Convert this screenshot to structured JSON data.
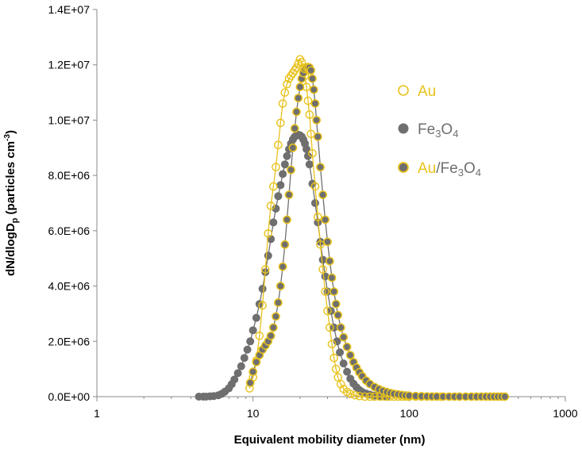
{
  "chart_data": {
    "type": "scatter",
    "title": "",
    "xlabel": "Equivalent mobility diameter (nm)",
    "ylabel": {
      "main": "dN/dlogD",
      "sub": "p",
      "rest": " (particles cm",
      "sup": "-3",
      "close": ")"
    },
    "x_scale": "log",
    "xlim": [
      1,
      1000
    ],
    "ylim": [
      0,
      14000000
    ],
    "x_ticks": [
      {
        "value": 1,
        "label": "1"
      },
      {
        "value": 10,
        "label": "10"
      },
      {
        "value": 100,
        "label": "100"
      },
      {
        "value": 1000,
        "label": "1000"
      }
    ],
    "y_ticks": [
      {
        "value": 0,
        "label": "0.0E+00"
      },
      {
        "value": 2000000,
        "label": "2.0E+06"
      },
      {
        "value": 4000000,
        "label": "4.0E+06"
      },
      {
        "value": 6000000,
        "label": "6.0E+06"
      },
      {
        "value": 8000000,
        "label": "8.0E+06"
      },
      {
        "value": 10000000,
        "label": "1.0E+07"
      },
      {
        "value": 12000000,
        "label": "1.2E+07"
      },
      {
        "value": 14000000,
        "label": "1.4E+07"
      }
    ],
    "grid": false,
    "legend_position": "right",
    "series": [
      {
        "name": "Au",
        "legend": [
          {
            "text": "Au",
            "color": "#e8c21c"
          }
        ],
        "marker": "open-circle",
        "color": "#e8c21c",
        "points": [
          [
            9.5,
            300000
          ],
          [
            10.0,
            700000
          ],
          [
            10.5,
            1300000
          ],
          [
            11.0,
            2200000
          ],
          [
            11.5,
            3300000
          ],
          [
            12.0,
            4600000
          ],
          [
            12.5,
            5900000
          ],
          [
            13.0,
            6900000
          ],
          [
            13.5,
            7600000
          ],
          [
            14.0,
            8300000
          ],
          [
            14.5,
            9100000
          ],
          [
            15.0,
            9900000
          ],
          [
            15.5,
            10600000
          ],
          [
            16.0,
            11000000
          ],
          [
            16.5,
            11300000
          ],
          [
            17.0,
            11500000
          ],
          [
            17.5,
            11600000
          ],
          [
            18.0,
            11700000
          ],
          [
            18.5,
            11800000
          ],
          [
            19.0,
            11900000
          ],
          [
            19.5,
            12050000
          ],
          [
            20.0,
            12200000
          ],
          [
            20.5,
            12100000
          ],
          [
            21.0,
            11900000
          ],
          [
            21.5,
            11600000
          ],
          [
            22.0,
            11200000
          ],
          [
            22.5,
            10700000
          ],
          [
            23.0,
            10200000
          ],
          [
            23.5,
            9500000
          ],
          [
            24.0,
            8800000
          ],
          [
            25.0,
            7600000
          ],
          [
            26.0,
            6500000
          ],
          [
            27.0,
            5500000
          ],
          [
            28.0,
            4600000
          ],
          [
            29.0,
            3800000
          ],
          [
            30.0,
            3100000
          ],
          [
            31.0,
            2500000
          ],
          [
            32.0,
            1900000
          ],
          [
            33.0,
            1400000
          ],
          [
            34.0,
            1000000
          ],
          [
            35.0,
            700000
          ],
          [
            36.5,
            450000
          ],
          [
            38.0,
            280000
          ],
          [
            40.0,
            170000
          ],
          [
            42.0,
            100000
          ],
          [
            45.0,
            50000
          ],
          [
            48.0,
            20000
          ],
          [
            52.0,
            0
          ],
          [
            56.0,
            0
          ],
          [
            60.0,
            0
          ],
          [
            65.0,
            0
          ],
          [
            70.0,
            0
          ],
          [
            75.0,
            0
          ],
          [
            80.0,
            0
          ],
          [
            85.0,
            0
          ],
          [
            90.0,
            0
          ],
          [
            95.0,
            0
          ],
          [
            100.0,
            0
          ],
          [
            110.0,
            0
          ],
          [
            120.0,
            0
          ],
          [
            130.0,
            0
          ],
          [
            140.0,
            0
          ],
          [
            150.0,
            0
          ],
          [
            160.0,
            0
          ]
        ]
      },
      {
        "name": "Fe3O4",
        "legend": [
          {
            "text": "Fe",
            "color": "#6f6f6f"
          },
          {
            "text": "3",
            "color": "#6f6f6f",
            "sub": true
          },
          {
            "text": "O",
            "color": "#6f6f6f"
          },
          {
            "text": "4",
            "color": "#6f6f6f",
            "sub": true
          }
        ],
        "marker": "filled-circle",
        "color": "#6f6f6f",
        "points": [
          [
            4.5,
            0
          ],
          [
            4.8,
            0
          ],
          [
            5.0,
            0
          ],
          [
            5.3,
            10000
          ],
          [
            5.6,
            20000
          ],
          [
            6.0,
            50000
          ],
          [
            6.3,
            100000
          ],
          [
            6.6,
            180000
          ],
          [
            7.0,
            300000
          ],
          [
            7.3,
            450000
          ],
          [
            7.6,
            620000
          ],
          [
            8.0,
            850000
          ],
          [
            8.4,
            1100000
          ],
          [
            8.8,
            1400000
          ],
          [
            9.2,
            1700000
          ],
          [
            9.6,
            2000000
          ],
          [
            10.0,
            2400000
          ],
          [
            10.5,
            2850000
          ],
          [
            11.0,
            3350000
          ],
          [
            11.5,
            3900000
          ],
          [
            12.0,
            4500000
          ],
          [
            12.5,
            5100000
          ],
          [
            13.0,
            5700000
          ],
          [
            13.5,
            6300000
          ],
          [
            14.0,
            6800000
          ],
          [
            14.5,
            7250000
          ],
          [
            15.0,
            7650000
          ],
          [
            15.5,
            8050000
          ],
          [
            16.0,
            8400000
          ],
          [
            16.5,
            8700000
          ],
          [
            17.0,
            8950000
          ],
          [
            17.5,
            9150000
          ],
          [
            18.0,
            9300000
          ],
          [
            18.5,
            9400000
          ],
          [
            19.0,
            9450000
          ],
          [
            19.5,
            9470000
          ],
          [
            20.0,
            9450000
          ],
          [
            20.5,
            9400000
          ],
          [
            21.0,
            9300000
          ],
          [
            21.5,
            9150000
          ],
          [
            22.0,
            8950000
          ],
          [
            22.5,
            8700000
          ],
          [
            23.0,
            8400000
          ],
          [
            24.0,
            7700000
          ],
          [
            25.0,
            7000000
          ],
          [
            26.0,
            6300000
          ],
          [
            27.0,
            5600000
          ],
          [
            28.0,
            4950000
          ],
          [
            29.0,
            4350000
          ],
          [
            30.0,
            3800000
          ],
          [
            31.5,
            3100000
          ],
          [
            33.0,
            2500000
          ],
          [
            34.5,
            2000000
          ],
          [
            36.0,
            1600000
          ],
          [
            38.0,
            1200000
          ],
          [
            40.0,
            900000
          ],
          [
            42.0,
            650000
          ],
          [
            44.0,
            470000
          ],
          [
            46.0,
            340000
          ],
          [
            48.0,
            240000
          ],
          [
            50.0,
            170000
          ],
          [
            53.0,
            110000
          ],
          [
            56.0,
            70000
          ],
          [
            60.0,
            40000
          ],
          [
            64.0,
            20000
          ],
          [
            68.0,
            10000
          ],
          [
            72.0,
            0
          ]
        ]
      },
      {
        "name": "Au/Fe3O4",
        "legend": [
          {
            "text": "Au",
            "color": "#e8c21c"
          },
          {
            "text": "/Fe",
            "color": "#6f6f6f"
          },
          {
            "text": "3",
            "color": "#6f6f6f",
            "sub": true
          },
          {
            "text": "O",
            "color": "#6f6f6f"
          },
          {
            "text": "4",
            "color": "#6f6f6f",
            "sub": true
          }
        ],
        "marker": "filled-circle-gold-edge",
        "color": "#6f6f6f",
        "edge_color": "#e8c21c",
        "points": [
          [
            9.6,
            500000
          ],
          [
            10.0,
            900000
          ],
          [
            10.5,
            1250000
          ],
          [
            11.0,
            1500000
          ],
          [
            11.5,
            1700000
          ],
          [
            12.0,
            1850000
          ],
          [
            12.5,
            2000000
          ],
          [
            13.0,
            2200000
          ],
          [
            13.5,
            2500000
          ],
          [
            14.0,
            2900000
          ],
          [
            14.5,
            3400000
          ],
          [
            15.0,
            4000000
          ],
          [
            15.5,
            4700000
          ],
          [
            16.0,
            5500000
          ],
          [
            16.5,
            6400000
          ],
          [
            17.0,
            7300000
          ],
          [
            17.5,
            8200000
          ],
          [
            18.0,
            9000000
          ],
          [
            18.5,
            9700000
          ],
          [
            19.0,
            10300000
          ],
          [
            19.5,
            10800000
          ],
          [
            20.0,
            11200000
          ],
          [
            20.5,
            11500000
          ],
          [
            21.0,
            11700000
          ],
          [
            21.5,
            11850000
          ],
          [
            22.0,
            11900000
          ],
          [
            22.5,
            11920000
          ],
          [
            23.0,
            11900000
          ],
          [
            23.5,
            11800000
          ],
          [
            24.0,
            11500000
          ],
          [
            24.5,
            11100000
          ],
          [
            25.0,
            10600000
          ],
          [
            25.5,
            10000000
          ],
          [
            26.0,
            9400000
          ],
          [
            27.0,
            8300000
          ],
          [
            28.0,
            7300000
          ],
          [
            29.0,
            6400000
          ],
          [
            30.0,
            5600000
          ],
          [
            31.0,
            4900000
          ],
          [
            32.0,
            4300000
          ],
          [
            33.0,
            3800000
          ],
          [
            34.0,
            3350000
          ],
          [
            35.0,
            2950000
          ],
          [
            36.5,
            2500000
          ],
          [
            38.0,
            2150000
          ],
          [
            40.0,
            1800000
          ],
          [
            42.0,
            1500000
          ],
          [
            44.0,
            1250000
          ],
          [
            46.0,
            1050000
          ],
          [
            48.0,
            880000
          ],
          [
            50.0,
            740000
          ],
          [
            53.0,
            580000
          ],
          [
            56.0,
            460000
          ],
          [
            60.0,
            350000
          ],
          [
            64.0,
            270000
          ],
          [
            68.0,
            210000
          ],
          [
            72.0,
            165000
          ],
          [
            76.0,
            130000
          ],
          [
            80.0,
            100000
          ],
          [
            85.0,
            80000
          ],
          [
            90.0,
            60000
          ],
          [
            95.0,
            45000
          ],
          [
            100.0,
            35000
          ],
          [
            110.0,
            22000
          ],
          [
            120.0,
            14000
          ],
          [
            130.0,
            9000
          ],
          [
            140.0,
            6000
          ],
          [
            150.0,
            4000
          ],
          [
            165.0,
            2500
          ],
          [
            180.0,
            1500
          ],
          [
            195.0,
            800
          ],
          [
            210.0,
            400
          ],
          [
            230.0,
            200
          ],
          [
            250.0,
            100
          ],
          [
            270.0,
            0
          ],
          [
            290.0,
            0
          ],
          [
            310.0,
            0
          ],
          [
            330.0,
            0
          ],
          [
            350.0,
            0
          ],
          [
            370.0,
            0
          ],
          [
            390.0,
            0
          ],
          [
            410.0,
            0
          ]
        ]
      }
    ]
  }
}
